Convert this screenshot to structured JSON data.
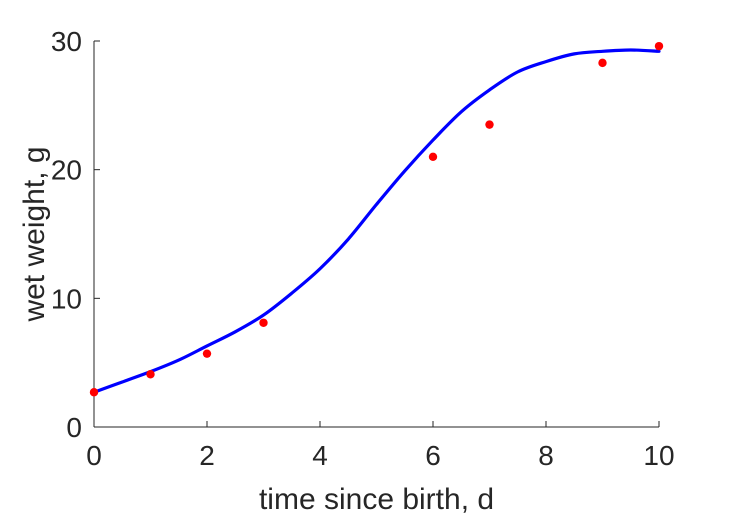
{
  "chart_data": {
    "type": "line",
    "title": "",
    "xlabel": "time since birth, d",
    "ylabel": "wet weight, g",
    "xlim": [
      0,
      10
    ],
    "ylim": [
      0,
      30
    ],
    "xticks": [
      0,
      2,
      4,
      6,
      8,
      10
    ],
    "yticks": [
      0,
      10,
      20,
      30
    ],
    "xtick_labels": [
      "0",
      "2",
      "4",
      "6",
      "8",
      "10"
    ],
    "ytick_labels": [
      "0",
      "10",
      "20",
      "30"
    ],
    "grid": false,
    "legend": "none",
    "series": [
      {
        "kind": "scatter",
        "color": "#ff0000",
        "x": [
          0,
          1,
          2,
          3,
          6,
          7,
          9,
          10
        ],
        "y": [
          2.7,
          4.1,
          5.7,
          8.1,
          21.0,
          23.5,
          28.3,
          29.6
        ]
      },
      {
        "kind": "line",
        "color": "#0000ff",
        "x": [
          0,
          0.5,
          1,
          1.5,
          2,
          2.5,
          3,
          3.5,
          4,
          4.5,
          5,
          5.5,
          6,
          6.5,
          7,
          7.5,
          8,
          8.5,
          9,
          9.5,
          10
        ],
        "y": [
          2.7,
          3.5,
          4.3,
          5.2,
          6.3,
          7.4,
          8.7,
          10.4,
          12.3,
          14.6,
          17.3,
          19.9,
          22.3,
          24.5,
          26.2,
          27.6,
          28.4,
          29.0,
          29.2,
          29.3,
          29.2
        ]
      }
    ]
  }
}
